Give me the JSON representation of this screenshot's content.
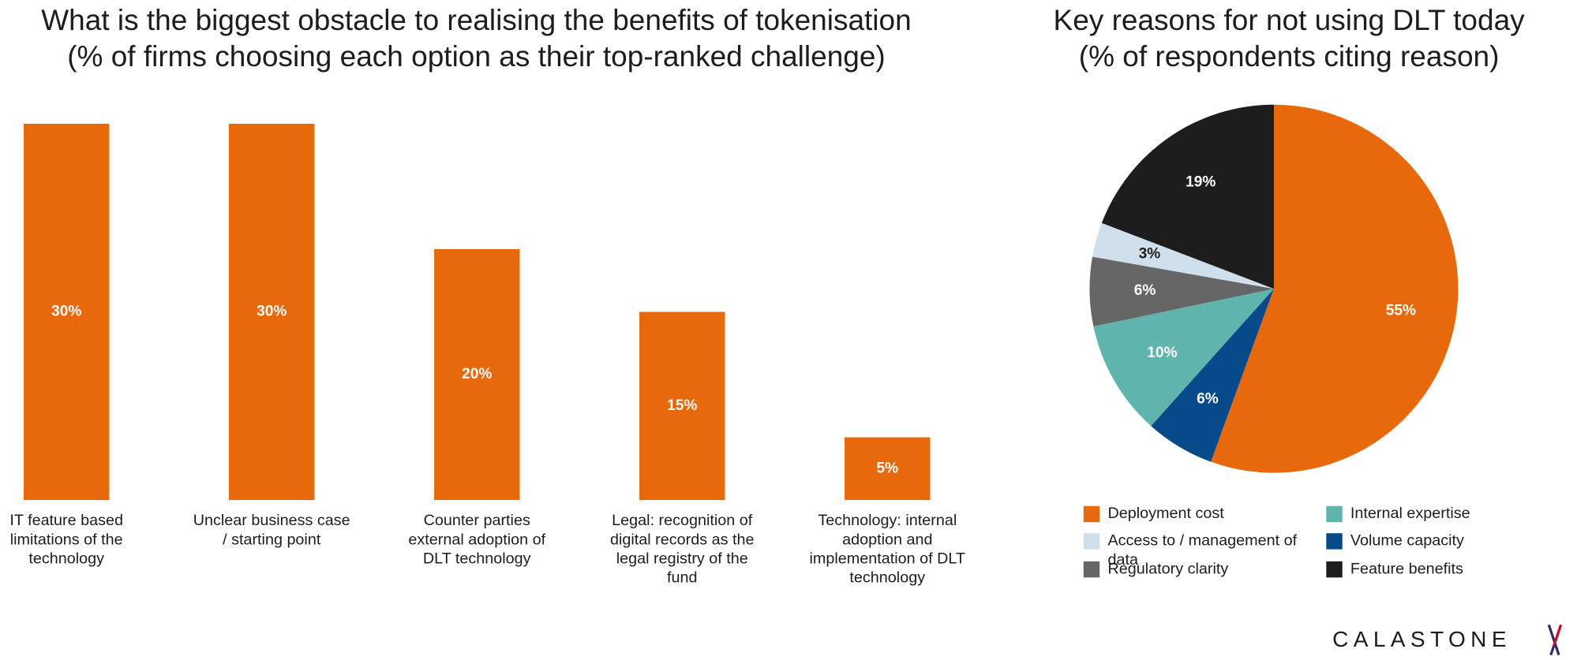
{
  "chart_data": [
    {
      "type": "bar",
      "title": "What is the biggest obstacle to realising the benefits of tokenisation",
      "subtitle": "(% of firms choosing each option as their top-ranked challenge)",
      "categories": [
        "IT feature based limitations of the technology",
        "Unclear business case / starting point",
        "Counter parties external adoption of DLT technology",
        "Legal: recognition of digital records as the legal registry of the fund",
        "Technology: internal adoption and implementation of DLT technology"
      ],
      "values": [
        30,
        30,
        20,
        15,
        5
      ],
      "value_labels": [
        "30%",
        "30%",
        "20%",
        "15%",
        "5%"
      ],
      "color": "#e8690b"
    },
    {
      "type": "pie",
      "title": "Key reasons for not using DLT today",
      "subtitle": "(% of respondents citing reason)",
      "categories": [
        "Deployment cost",
        "Volume capacity",
        "Internal expertise",
        "Regulatory clarity",
        "Access to / management of data",
        "Feature benefits"
      ],
      "values": [
        55,
        6,
        10,
        6,
        3,
        19
      ],
      "value_labels": [
        "55%",
        "6%",
        "10%",
        "6%",
        "3%",
        "19%"
      ],
      "colors": [
        "#e8690b",
        "#064a8a",
        "#5fb5ad",
        "#666666",
        "#cfe0ec",
        "#1d1d1d"
      ]
    }
  ],
  "logo": "CALASTONE"
}
